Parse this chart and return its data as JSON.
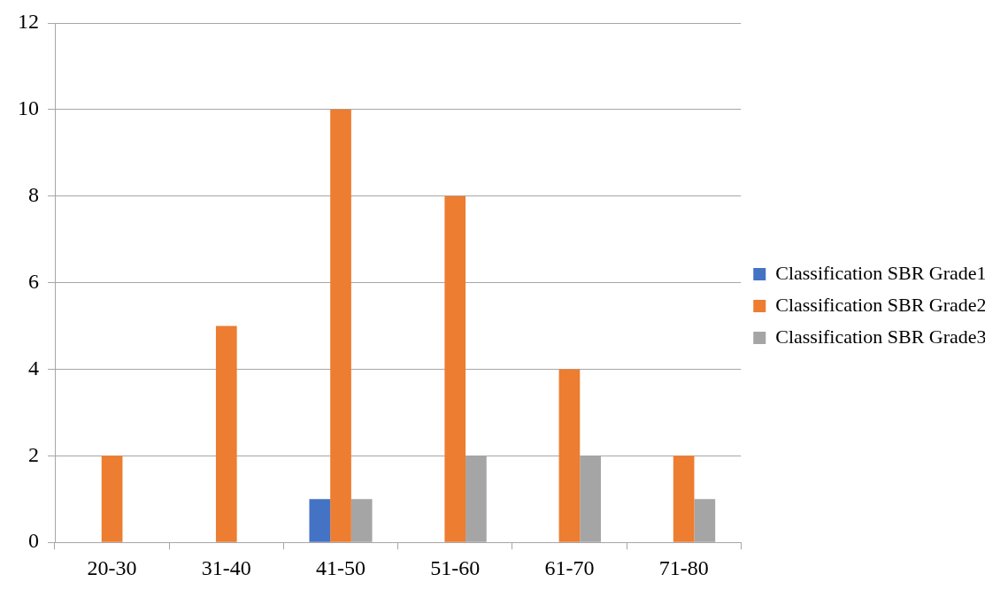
{
  "chart_data": {
    "type": "bar",
    "categories": [
      "20-30",
      "31-40",
      "41-50",
      "51-60",
      "61-70",
      "71-80"
    ],
    "series": [
      {
        "name": "Classification SBR Grade1",
        "color": "#4472c4",
        "values": [
          0,
          0,
          1,
          0,
          0,
          0
        ]
      },
      {
        "name": "Classification SBR Grade2",
        "color": "#ed7d31",
        "values": [
          2,
          5,
          10,
          8,
          4,
          2
        ]
      },
      {
        "name": "Classification SBR Grade3",
        "color": "#a5a5a5",
        "values": [
          0,
          0,
          1,
          2,
          2,
          1
        ]
      }
    ],
    "ylim": [
      0,
      12
    ],
    "yticks": [
      0,
      2,
      4,
      6,
      8,
      10,
      12
    ],
    "grid": "y",
    "legend": "right"
  }
}
